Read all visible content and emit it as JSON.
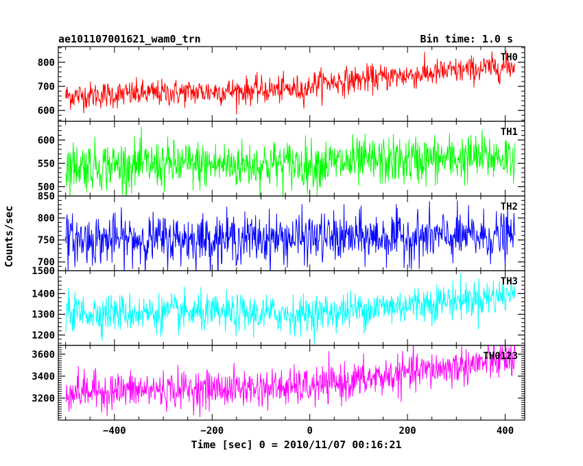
{
  "header": {
    "left_title": "ae101107001621_wam0_trn",
    "right_title": "Bin time: 1.0 s"
  },
  "chart_data": {
    "type": "line",
    "title": "ae101107001621_wam0_trn",
    "subtitle": "Bin time: 1.0 s",
    "xlabel": "Time [sec] 0 = 2010/11/07 00:16:21",
    "ylabel": "Counts/sec",
    "xlim": [
      -515,
      440
    ],
    "x_range_of_data": [
      -500,
      420
    ],
    "bin_time_s": 1.0,
    "xticks": [
      -400,
      -200,
      0,
      200,
      400
    ],
    "xtick_labels": [
      "−400",
      "−200",
      "0",
      "200",
      "400"
    ],
    "grid": false,
    "panels": [
      {
        "name": "TH0",
        "color": "#ff0000",
        "ylim": [
          555,
          865
        ],
        "yticks": [
          600,
          700,
          800
        ],
        "yticks_minor": [
          560,
          580,
          620,
          640,
          660,
          680,
          720,
          740,
          760,
          780,
          820,
          840,
          860
        ],
        "trend": [
          [
            -500,
            660
          ],
          [
            0,
            690
          ],
          [
            0,
            710
          ],
          [
            420,
            785
          ]
        ],
        "noise_sd": 28
      },
      {
        "name": "TH1",
        "color": "#00ff00",
        "ylim": [
          480,
          640
        ],
        "yticks": [
          500,
          550,
          600
        ],
        "yticks_minor": [
          490,
          510,
          520,
          530,
          540,
          560,
          570,
          580,
          590,
          610,
          620,
          630
        ],
        "trend": [
          [
            -500,
            545
          ],
          [
            0,
            548
          ],
          [
            420,
            565
          ]
        ],
        "noise_sd": 26
      },
      {
        "name": "TH2",
        "color": "#0000ff",
        "ylim": [
          680,
          850
        ],
        "yticks": [
          700,
          750,
          800
        ],
        "yticks_minor": [
          690,
          710,
          720,
          730,
          740,
          760,
          770,
          780,
          790,
          810,
          820,
          830,
          840
        ],
        "ytick_top_label": "850",
        "trend": [
          [
            -500,
            750
          ],
          [
            420,
            758
          ]
        ],
        "noise_sd": 28
      },
      {
        "name": "TH3",
        "color": "#00ffff",
        "ylim": [
          1150,
          1510
        ],
        "yticks": [
          1200,
          1300,
          1400
        ],
        "yticks_minor": [
          1160,
          1180,
          1220,
          1240,
          1260,
          1280,
          1320,
          1340,
          1360,
          1380,
          1420,
          1440,
          1460,
          1480
        ],
        "ytick_top_label": "1500",
        "trend": [
          [
            -500,
            1310
          ],
          [
            0,
            1300
          ],
          [
            420,
            1395
          ]
        ],
        "noise_sd": 45
      },
      {
        "name": "TH0123",
        "color": "#ff00ff",
        "ylim": [
          3000,
          3680
        ],
        "yticks": [
          3200,
          3400,
          3600
        ],
        "yticks_minor": [
          3020,
          3040,
          3060,
          3080,
          3100,
          3120,
          3140,
          3160,
          3180,
          3220,
          3240,
          3260,
          3280,
          3300,
          3320,
          3340,
          3360,
          3380,
          3420,
          3440,
          3460,
          3480,
          3500,
          3520,
          3540,
          3560,
          3580,
          3620,
          3640,
          3660
        ],
        "trend": [
          [
            -500,
            3260
          ],
          [
            0,
            3300
          ],
          [
            420,
            3560
          ]
        ],
        "noise_sd": 85
      }
    ]
  }
}
